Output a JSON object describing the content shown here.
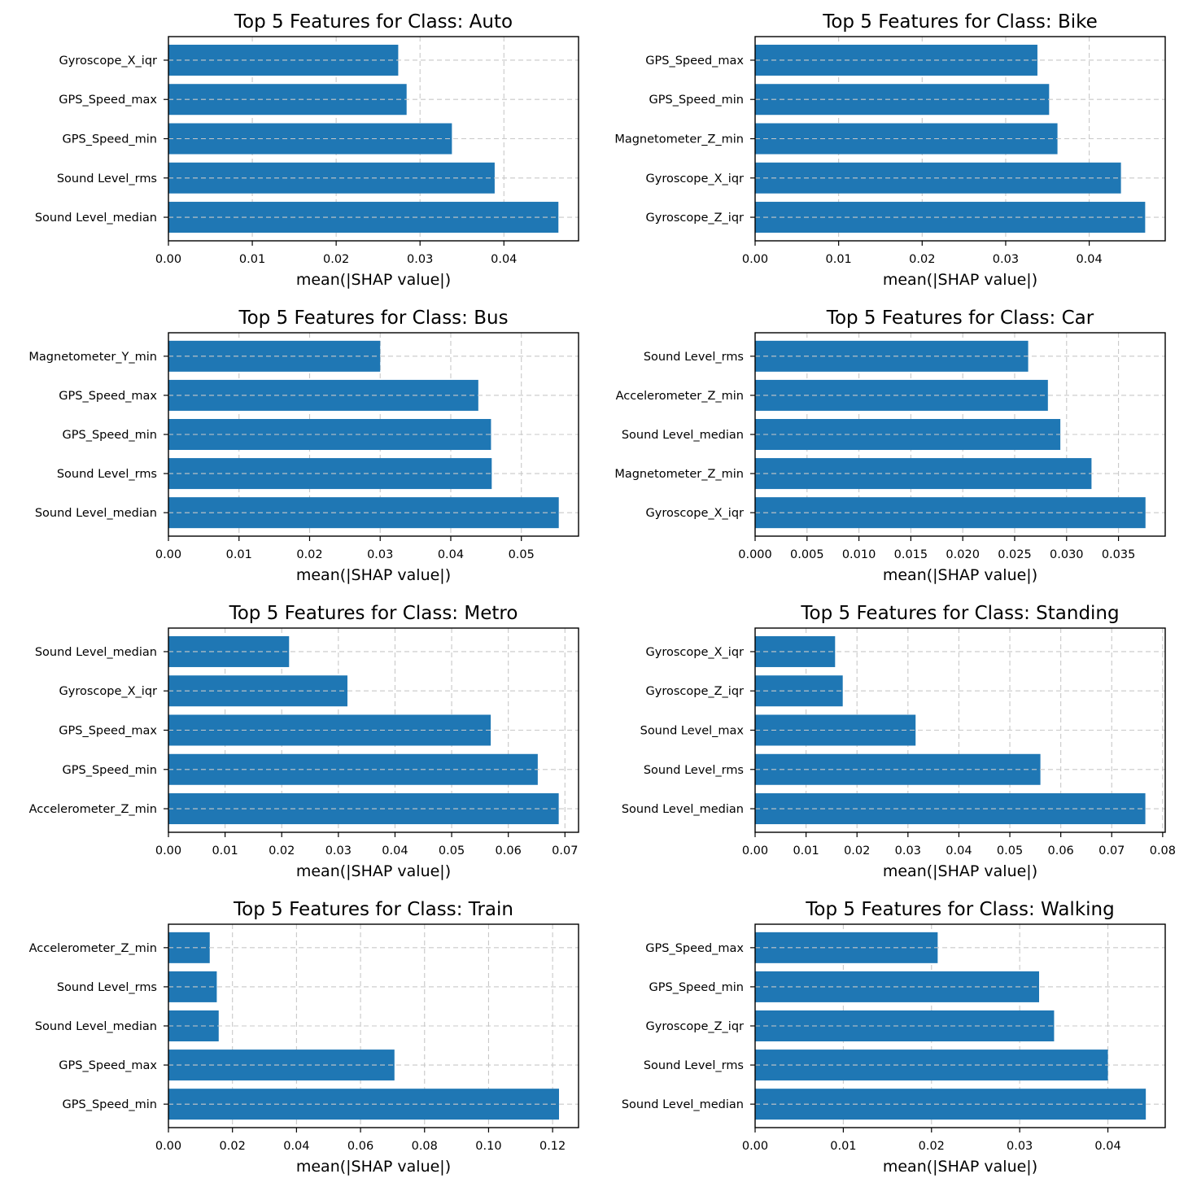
{
  "chart_data": [
    {
      "type": "bar",
      "orientation": "horizontal",
      "title": "Top 5 Features for Class: Auto",
      "xlabel": "mean(|SHAP value|)",
      "ylabel": "",
      "categories": [
        "Sound Level_median",
        "Sound Level_rms",
        "GPS_Speed_min",
        "GPS_Speed_max",
        "Gyroscope_X_iqr"
      ],
      "values": [
        0.0465,
        0.0389,
        0.0338,
        0.0284,
        0.0274
      ],
      "xlim": [
        0,
        0.0489
      ],
      "xticks": [
        0,
        0.01,
        0.02,
        0.03,
        0.04
      ],
      "xtick_labels": [
        "0.00",
        "0.01",
        "0.02",
        "0.03",
        "0.04"
      ],
      "grid": true,
      "color": "#1f77b4"
    },
    {
      "type": "bar",
      "orientation": "horizontal",
      "title": "Top 5 Features for Class: Bike",
      "xlabel": "mean(|SHAP value|)",
      "ylabel": "",
      "categories": [
        "Gyroscope_Z_iqr",
        "Gyroscope_X_iqr",
        "Magnetometer_Z_min",
        "GPS_Speed_min",
        "GPS_Speed_max"
      ],
      "values": [
        0.0467,
        0.0438,
        0.0362,
        0.0352,
        0.0338
      ],
      "xlim": [
        0,
        0.0491
      ],
      "xticks": [
        0,
        0.01,
        0.02,
        0.03,
        0.04
      ],
      "xtick_labels": [
        "0.00",
        "0.01",
        "0.02",
        "0.03",
        "0.04"
      ],
      "grid": true,
      "color": "#1f77b4"
    },
    {
      "type": "bar",
      "orientation": "horizontal",
      "title": "Top 5 Features for Class: Bus",
      "xlabel": "mean(|SHAP value|)",
      "ylabel": "",
      "categories": [
        "Sound Level_median",
        "Sound Level_rms",
        "GPS_Speed_min",
        "GPS_Speed_max",
        "Magnetometer_Y_min"
      ],
      "values": [
        0.0553,
        0.0458,
        0.0457,
        0.0439,
        0.03
      ],
      "xlim": [
        0,
        0.0581
      ],
      "xticks": [
        0,
        0.01,
        0.02,
        0.03,
        0.04,
        0.05
      ],
      "xtick_labels": [
        "0.00",
        "0.01",
        "0.02",
        "0.03",
        "0.04",
        "0.05"
      ],
      "grid": true,
      "color": "#1f77b4"
    },
    {
      "type": "bar",
      "orientation": "horizontal",
      "title": "Top 5 Features for Class: Car",
      "xlabel": "mean(|SHAP value|)",
      "ylabel": "",
      "categories": [
        "Gyroscope_X_iqr",
        "Magnetometer_Z_min",
        "Sound Level_median",
        "Accelerometer_Z_min",
        "Sound Level_rms"
      ],
      "values": [
        0.0376,
        0.0324,
        0.0294,
        0.0282,
        0.0263
      ],
      "xlim": [
        0,
        0.0395
      ],
      "xticks": [
        0,
        0.005,
        0.01,
        0.015,
        0.02,
        0.025,
        0.03,
        0.035
      ],
      "xtick_labels": [
        "0.000",
        "0.005",
        "0.010",
        "0.015",
        "0.020",
        "0.025",
        "0.030",
        "0.035"
      ],
      "grid": true,
      "color": "#1f77b4"
    },
    {
      "type": "bar",
      "orientation": "horizontal",
      "title": "Top 5 Features for Class: Metro",
      "xlabel": "mean(|SHAP value|)",
      "ylabel": "",
      "categories": [
        "Accelerometer_Z_min",
        "GPS_Speed_min",
        "GPS_Speed_max",
        "Gyroscope_X_iqr",
        "Sound Level_median"
      ],
      "values": [
        0.0689,
        0.0652,
        0.0569,
        0.0316,
        0.0213
      ],
      "xlim": [
        0,
        0.0724
      ],
      "xticks": [
        0,
        0.01,
        0.02,
        0.03,
        0.04,
        0.05,
        0.06,
        0.07
      ],
      "xtick_labels": [
        "0.00",
        "0.01",
        "0.02",
        "0.03",
        "0.04",
        "0.05",
        "0.06",
        "0.07"
      ],
      "grid": true,
      "color": "#1f77b4"
    },
    {
      "type": "bar",
      "orientation": "horizontal",
      "title": "Top 5 Features for Class: Standing",
      "xlabel": "mean(|SHAP value|)",
      "ylabel": "",
      "categories": [
        "Sound Level_median",
        "Sound Level_rms",
        "Sound Level_max",
        "Gyroscope_Z_iqr",
        "Gyroscope_X_iqr"
      ],
      "values": [
        0.0766,
        0.056,
        0.0315,
        0.0172,
        0.0157
      ],
      "xlim": [
        0,
        0.0805
      ],
      "xticks": [
        0,
        0.01,
        0.02,
        0.03,
        0.04,
        0.05,
        0.06,
        0.07,
        0.08
      ],
      "xtick_labels": [
        "0.00",
        "0.01",
        "0.02",
        "0.03",
        "0.04",
        "0.05",
        "0.06",
        "0.07",
        "0.08"
      ],
      "grid": true,
      "color": "#1f77b4"
    },
    {
      "type": "bar",
      "orientation": "horizontal",
      "title": "Top 5 Features for Class: Train",
      "xlabel": "mean(|SHAP value|)",
      "ylabel": "",
      "categories": [
        "GPS_Speed_min",
        "GPS_Speed_max",
        "Sound Level_median",
        "Sound Level_rms",
        "Accelerometer_Z_min"
      ],
      "values": [
        0.122,
        0.0706,
        0.0157,
        0.0151,
        0.0129
      ],
      "xlim": [
        0,
        0.1281
      ],
      "xticks": [
        0,
        0.02,
        0.04,
        0.06,
        0.08,
        0.1,
        0.12
      ],
      "xtick_labels": [
        "0.00",
        "0.02",
        "0.04",
        "0.06",
        "0.08",
        "0.10",
        "0.12"
      ],
      "grid": true,
      "color": "#1f77b4"
    },
    {
      "type": "bar",
      "orientation": "horizontal",
      "title": "Top 5 Features for Class: Walking",
      "xlabel": "mean(|SHAP value|)",
      "ylabel": "",
      "categories": [
        "Sound Level_median",
        "Sound Level_rms",
        "Gyroscope_Z_iqr",
        "GPS_Speed_min",
        "GPS_Speed_max"
      ],
      "values": [
        0.0443,
        0.04,
        0.0339,
        0.0322,
        0.0207
      ],
      "xlim": [
        0,
        0.0465
      ],
      "xticks": [
        0,
        0.01,
        0.02,
        0.03,
        0.04
      ],
      "xtick_labels": [
        "0.00",
        "0.01",
        "0.02",
        "0.03",
        "0.04"
      ],
      "grid": true,
      "color": "#1f77b4"
    }
  ]
}
